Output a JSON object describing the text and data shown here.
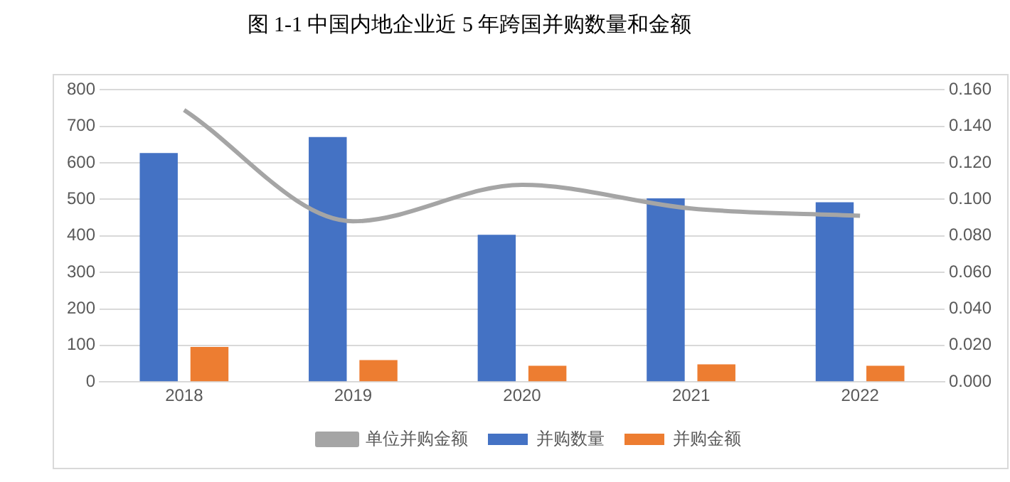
{
  "chart_data": {
    "type": "bar",
    "title": "图 1-1  中国内地企业近 5 年跨国并购数量和金额",
    "categories": [
      "2018",
      "2019",
      "2020",
      "2021",
      "2022"
    ],
    "series": [
      {
        "name": "并购数量",
        "color": "#4472c4",
        "values": [
          627,
          671,
          403,
          503,
          492
        ]
      },
      {
        "name": "并购金额",
        "color": "#ed7d31",
        "values": [
          96,
          60,
          44,
          48,
          44
        ]
      },
      {
        "name": "单位并购金额",
        "type": "line",
        "axis": "y2",
        "color": "#a5a5a5",
        "values": [
          0.149,
          0.088,
          0.108,
          0.095,
          0.091
        ]
      }
    ],
    "ylim": [
      0,
      800
    ],
    "yticks": [
      0,
      100,
      200,
      300,
      400,
      500,
      600,
      700,
      800
    ],
    "y2lim": [
      0,
      0.16
    ],
    "y2ticks": [
      {
        "value": 0,
        "label": "0.000"
      },
      {
        "value": 0.02,
        "label": "0.020"
      },
      {
        "value": 0.04,
        "label": "0.040"
      },
      {
        "value": 0.06,
        "label": "0.060"
      },
      {
        "value": 0.08,
        "label": "0.080"
      },
      {
        "value": 0.1,
        "label": "0.100"
      },
      {
        "value": 0.12,
        "label": "0.120"
      },
      {
        "value": 0.14,
        "label": "0.140"
      },
      {
        "value": 0.16,
        "label": "0.160"
      }
    ],
    "grid": "y",
    "legend": "bottom",
    "marker": "none"
  }
}
